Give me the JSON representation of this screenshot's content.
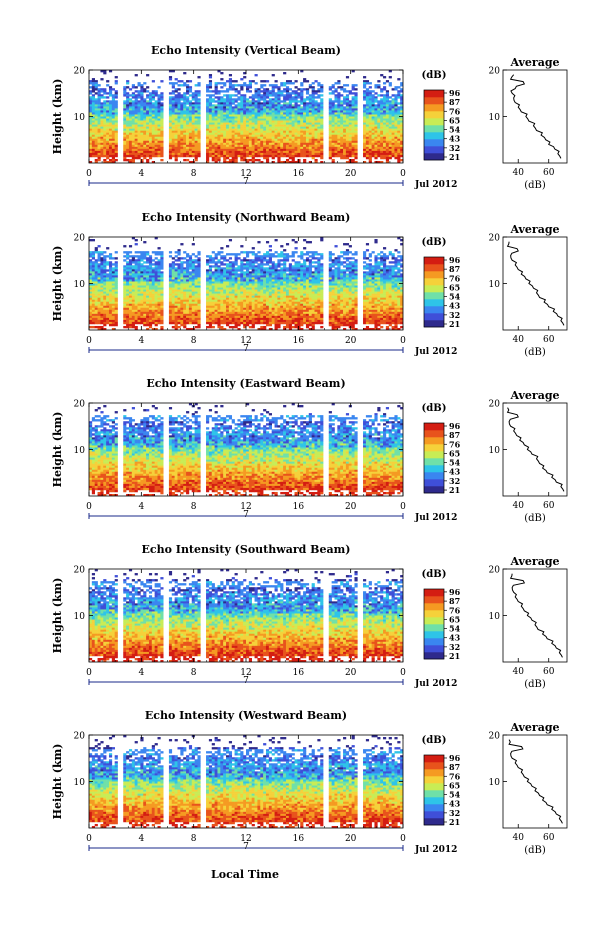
{
  "page": {
    "xlabel": "Local Time"
  },
  "colorbar": {
    "unit": "(dB)",
    "ticks": [
      "96",
      "87",
      "76",
      "65",
      "54",
      "43",
      "32",
      "21"
    ],
    "colors": [
      "#2e2a8c",
      "#3f4fd8",
      "#3a86f0",
      "#2ec4e8",
      "#6fe0a8",
      "#c8ec55",
      "#f5d13a",
      "#f59a22",
      "#e8531c",
      "#d41d12"
    ]
  },
  "chart_data": [
    {
      "type": "heatmap",
      "title": "Echo Intensity (Vertical Beam)",
      "ylabel": "Height (km)",
      "xticks": [
        "0",
        "4",
        "8",
        "12",
        "16",
        "20",
        "0"
      ],
      "xlim": [
        0,
        24
      ],
      "ylim": [
        0,
        20
      ],
      "yticks": [
        "20",
        "10"
      ],
      "date_label": "7",
      "month_label": "Jul 2012",
      "gaps_hours": [
        2.5,
        5.8,
        8.8,
        18.2,
        20.7
      ],
      "avg_profile": {
        "title": "Average",
        "xlabel": "(dB)",
        "xticks": [
          "40",
          "60"
        ],
        "xlim": [
          30,
          72
        ],
        "heights": [
          1,
          2,
          3,
          4,
          5,
          6,
          7,
          8,
          9,
          10,
          11,
          12,
          13,
          14,
          15,
          16,
          17,
          18,
          19
        ],
        "values": [
          68,
          66,
          64,
          60,
          58,
          55,
          52,
          50,
          47,
          45,
          42,
          40,
          38,
          37,
          36,
          38,
          44,
          35,
          37
        ]
      }
    },
    {
      "type": "heatmap",
      "title": "Echo Intensity (Northward Beam)",
      "ylabel": "Height (km)",
      "xticks": [
        "0",
        "4",
        "8",
        "12",
        "16",
        "20",
        "0"
      ],
      "xlim": [
        0,
        24
      ],
      "ylim": [
        0,
        20
      ],
      "yticks": [
        "20",
        "10"
      ],
      "date_label": "7",
      "month_label": "Jul 2012",
      "gaps_hours": [
        2.5,
        5.8,
        8.8,
        18.2,
        20.7
      ],
      "avg_profile": {
        "title": "Average",
        "xlabel": "(dB)",
        "xticks": [
          "40",
          "60"
        ],
        "xlim": [
          30,
          72
        ],
        "heights": [
          1,
          2,
          3,
          4,
          5,
          6,
          7,
          8,
          9,
          10,
          11,
          12,
          13,
          14,
          15,
          16,
          17,
          18,
          19
        ],
        "values": [
          70,
          68,
          66,
          63,
          60,
          57,
          54,
          52,
          50,
          47,
          45,
          42,
          40,
          38,
          36,
          35,
          40,
          33,
          34
        ]
      }
    },
    {
      "type": "heatmap",
      "title": "Echo Intensity (Eastward Beam)",
      "ylabel": "Height (km)",
      "xticks": [
        "0",
        "4",
        "8",
        "12",
        "16",
        "20",
        "0"
      ],
      "xlim": [
        0,
        24
      ],
      "ylim": [
        0,
        20
      ],
      "yticks": [
        "20",
        "10"
      ],
      "date_label": "7",
      "month_label": "Jul 2012",
      "gaps_hours": [
        2.5,
        5.8,
        8.8,
        18.2,
        20.7
      ],
      "avg_profile": {
        "title": "Average",
        "xlabel": "(dB)",
        "xticks": [
          "40",
          "60"
        ],
        "xlim": [
          30,
          72
        ],
        "heights": [
          1,
          2,
          3,
          4,
          5,
          6,
          7,
          8,
          9,
          10,
          11,
          12,
          13,
          14,
          15,
          16,
          17,
          18,
          19
        ],
        "values": [
          70,
          68,
          65,
          62,
          59,
          56,
          54,
          52,
          49,
          46,
          44,
          41,
          39,
          37,
          35,
          34,
          40,
          33,
          33
        ]
      }
    },
    {
      "type": "heatmap",
      "title": "Echo Intensity (Southward Beam)",
      "ylabel": "Height (km)",
      "xticks": [
        "0",
        "4",
        "8",
        "12",
        "16",
        "20",
        "0"
      ],
      "xlim": [
        0,
        24
      ],
      "ylim": [
        0,
        20
      ],
      "yticks": [
        "20",
        "10"
      ],
      "date_label": "7",
      "month_label": "Jul 2012",
      "gaps_hours": [
        2.5,
        5.8,
        8.8,
        18.2,
        20.7
      ],
      "avg_profile": {
        "title": "Average",
        "xlabel": "(dB)",
        "xticks": [
          "40",
          "60"
        ],
        "xlim": [
          30,
          72
        ],
        "heights": [
          1,
          2,
          3,
          4,
          5,
          6,
          7,
          8,
          9,
          10,
          11,
          12,
          13,
          14,
          15,
          16,
          17,
          18,
          19
        ],
        "values": [
          69,
          67,
          65,
          62,
          59,
          56,
          53,
          51,
          49,
          46,
          44,
          42,
          40,
          38,
          37,
          36,
          44,
          35,
          36
        ]
      }
    },
    {
      "type": "heatmap",
      "title": "Echo Intensity (Westward Beam)",
      "ylabel": "Height (km)",
      "xticks": [
        "0",
        "4",
        "8",
        "12",
        "16",
        "20",
        "0"
      ],
      "xlim": [
        0,
        24
      ],
      "ylim": [
        0,
        20
      ],
      "yticks": [
        "20",
        "10"
      ],
      "date_label": "7",
      "month_label": "Jul 2012",
      "gaps_hours": [
        2.5,
        5.8,
        8.8,
        18.2,
        20.7
      ],
      "avg_profile": {
        "title": "Average",
        "xlabel": "(dB)",
        "xticks": [
          "40",
          "60"
        ],
        "xlim": [
          30,
          72
        ],
        "heights": [
          1,
          2,
          3,
          4,
          5,
          6,
          7,
          8,
          9,
          10,
          11,
          12,
          13,
          14,
          15,
          16,
          17,
          18,
          19
        ],
        "values": [
          69,
          67,
          65,
          62,
          59,
          56,
          54,
          51,
          49,
          46,
          44,
          42,
          40,
          38,
          36,
          35,
          43,
          34,
          34
        ]
      }
    }
  ]
}
